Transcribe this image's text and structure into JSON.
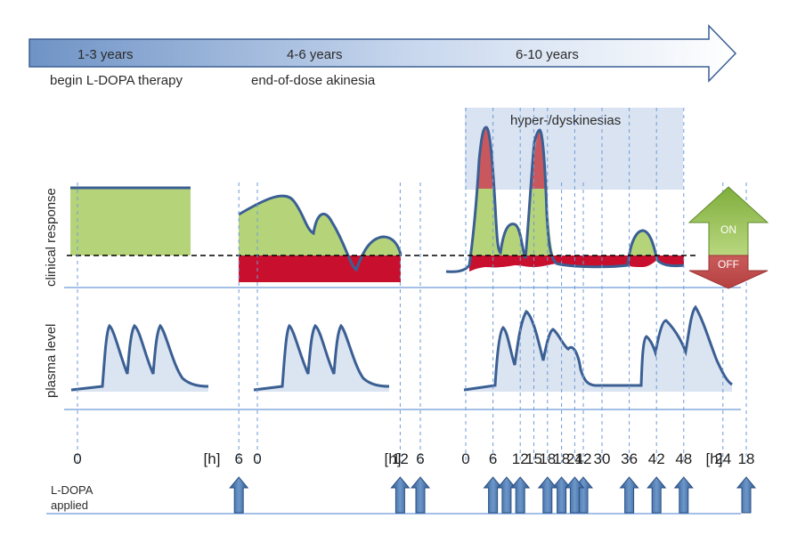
{
  "timeline": {
    "phases": [
      {
        "period": "1-3 years",
        "caption": "begin L-DOPA therapy"
      },
      {
        "period": "4-6 years",
        "caption": "end-of-dose akinesia"
      },
      {
        "period": "6-10 years",
        "caption": ""
      }
    ]
  },
  "labels": {
    "dyskinesia_zone": "hyper-/dyskinesias",
    "clinical_response": "clinical response",
    "plasma_level": "plasma level",
    "on": "ON",
    "off": "OFF",
    "ldopa_applied_line1": "L-DOPA",
    "ldopa_applied_line2": "applied"
  },
  "panels": [
    {
      "ticks": [
        "0",
        "6",
        "12",
        "18",
        "24"
      ],
      "unit": "[h]",
      "doses": [
        "6",
        "12",
        "18"
      ]
    },
    {
      "ticks": [
        "0",
        "6",
        "12",
        "18",
        "24"
      ],
      "unit": "[h]",
      "doses": [
        "6",
        "12",
        "18"
      ]
    },
    {
      "ticks": [
        "0",
        "6",
        "12",
        "15",
        "18",
        "24",
        "30",
        "36",
        "42",
        "48"
      ],
      "unit": "[h]",
      "doses": [
        "6",
        "9",
        "12",
        "18",
        "24",
        "36",
        "42",
        "48"
      ]
    }
  ],
  "colors": {
    "arrow_blue": "#6f93c6",
    "curve": "#3b5f93",
    "on_green": "#b5d47a",
    "off_red": "#c8102e",
    "dyskinesia_band": "#d9e3f1",
    "plasma_fill": "#dbe4f1",
    "guide_line": "#6e9bd6"
  }
}
